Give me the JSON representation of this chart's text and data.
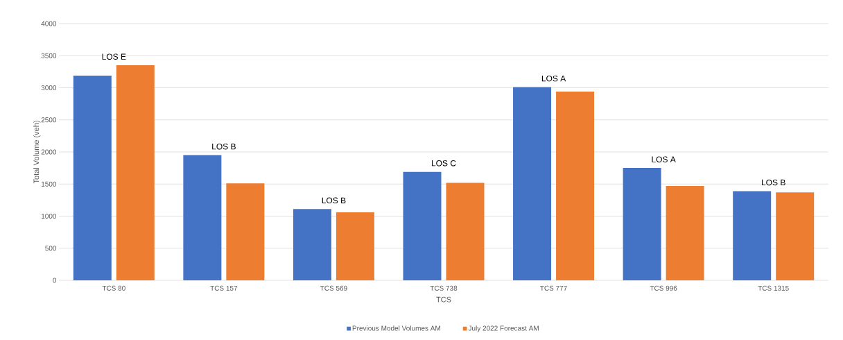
{
  "chart_data": {
    "type": "bar",
    "xlabel": "TCS",
    "ylabel": "Total Volume (veh)",
    "categories": [
      "TCS 80",
      "TCS 157",
      "TCS 569",
      "TCS 738",
      "TCS 777",
      "TCS 996",
      "TCS 1315"
    ],
    "series": [
      {
        "name": "Previous Model Volumes AM",
        "color": "#4472c4",
        "values": [
          3190,
          1950,
          1110,
          1690,
          3010,
          1750,
          1390
        ]
      },
      {
        "name": "July 2022 Forecast AM",
        "color": "#ed7d31",
        "values": [
          3350,
          1510,
          1060,
          1520,
          2940,
          1470,
          1370
        ]
      }
    ],
    "ylim": [
      0,
      4000
    ],
    "yticks": [
      0,
      500,
      1000,
      1500,
      2000,
      2500,
      3000,
      3500,
      4000
    ],
    "grid": "y",
    "legend": "bottom",
    "annotations": [
      {
        "text": "LOS E",
        "x": "TCS 80",
        "y": 3350
      },
      {
        "text": "LOS B",
        "x": "TCS 157",
        "y": 1950
      },
      {
        "text": "LOS B",
        "x": "TCS 569",
        "y": 1110
      },
      {
        "text": "LOS C",
        "x": "TCS 738",
        "y": 1690
      },
      {
        "text": "LOS A",
        "x": "TCS 777",
        "y": 3010
      },
      {
        "text": "LOS A",
        "x": "TCS 996",
        "y": 1750
      },
      {
        "text": "LOS B",
        "x": "TCS 1315",
        "y": 1390
      }
    ]
  }
}
